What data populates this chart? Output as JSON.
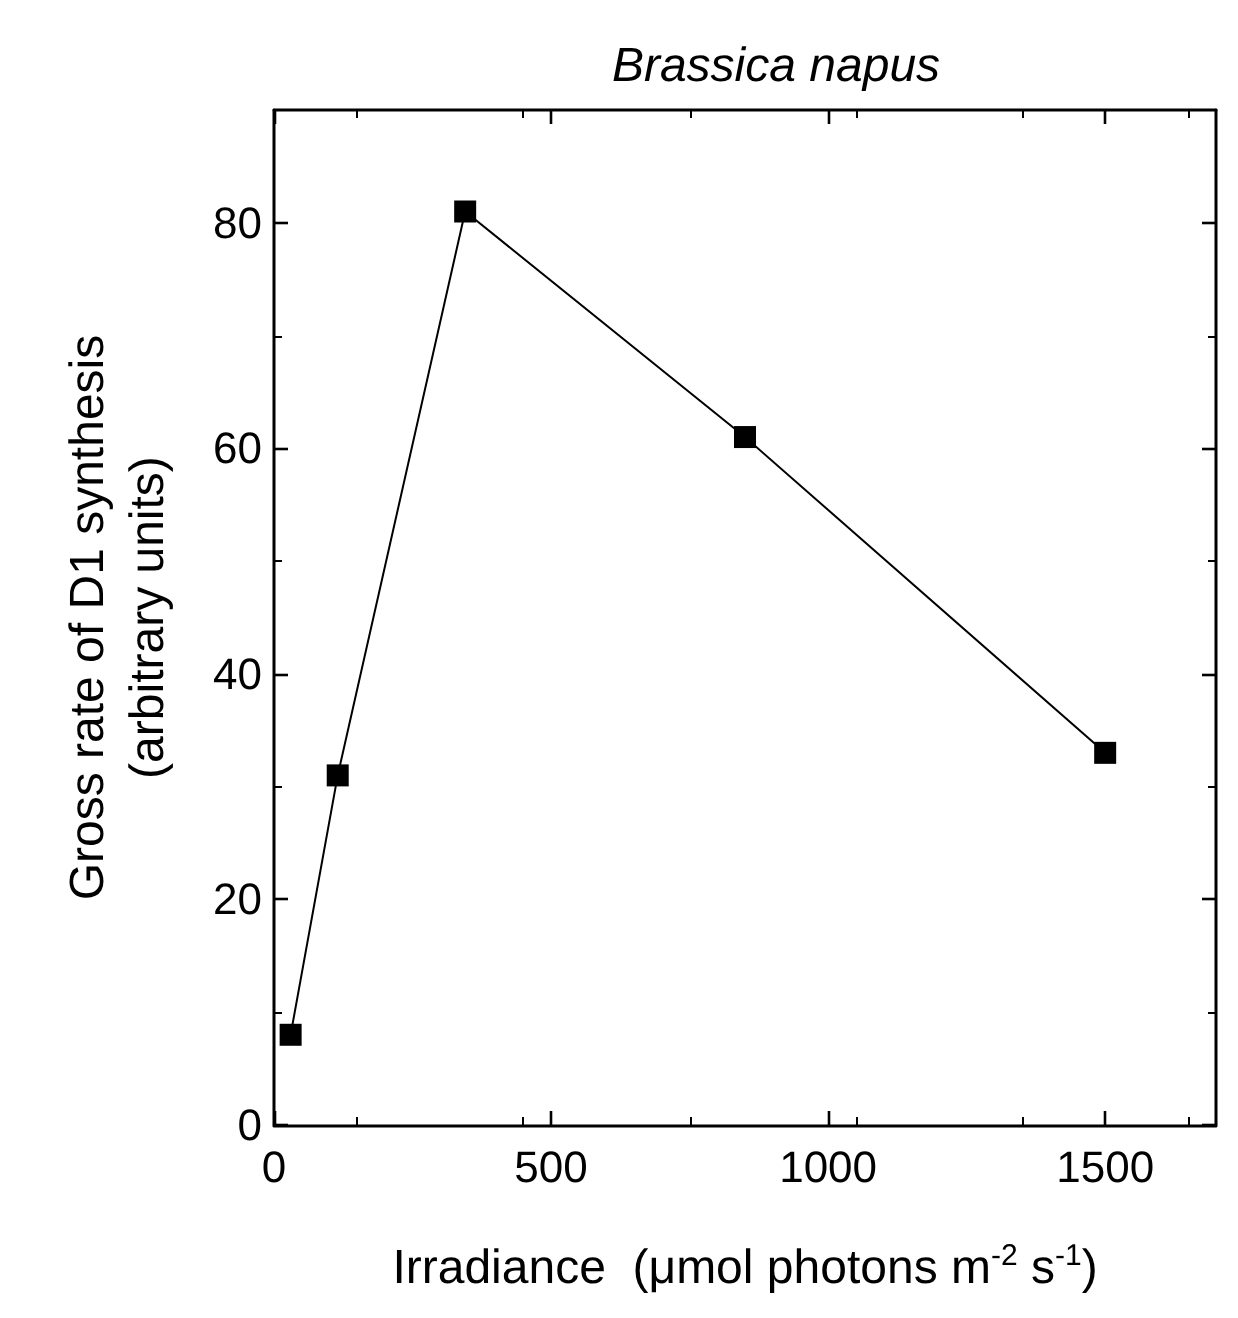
{
  "chart_data": {
    "type": "line",
    "title": "Brassica napus",
    "xlabel": "Irradiance  (μmol photons m$^{-2}$ s$^{-1}$)",
    "ylabel": "Gross rate of D1 synthesis\n(arbitrary units)",
    "x": [
      30,
      115,
      345,
      850,
      1500
    ],
    "series": [
      {
        "color": "#000000",
        "values": [
          8,
          31,
          81,
          61,
          33
        ]
      }
    ],
    "xlim": [
      0,
      1700
    ],
    "xticks": [
      0,
      500,
      1000,
      1500
    ],
    "ylim": [
      0,
      90
    ],
    "yticks": [
      0,
      20,
      40,
      60,
      80
    ],
    "grid": false,
    "marker": "square",
    "line_style": "solid"
  }
}
